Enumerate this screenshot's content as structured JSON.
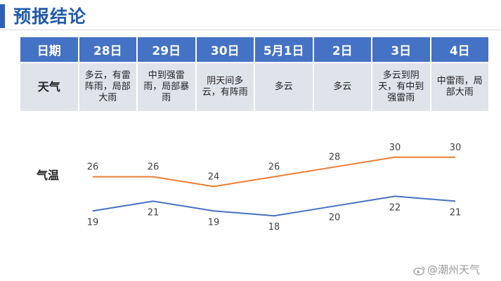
{
  "title": "预报结论",
  "table": {
    "date_header": "日期",
    "weather_header": "天气",
    "dates": [
      "28日",
      "29日",
      "30日",
      "5月1日",
      "2日",
      "3日",
      "4日"
    ],
    "weather": [
      "多云，有雷阵雨，局部大雨",
      "中到强雷雨，局部暴雨",
      "阴天间多云，有阵雨",
      "多云",
      "多云",
      "多云到阴天，有中到强雷雨",
      "中雷雨，局部大雨"
    ]
  },
  "temperature_label": "气温",
  "watermark": "@潮州天气",
  "colors": {
    "header_bg": "#4472c4",
    "cell_bg": "#dfe3ea",
    "title": "#1f5aa8",
    "high_line": "#ed7d31",
    "low_line": "#4472c4"
  },
  "chart_data": {
    "type": "line",
    "categories": [
      "28日",
      "29日",
      "30日",
      "5月1日",
      "2日",
      "3日",
      "4日"
    ],
    "series": [
      {
        "values": [
          26,
          26,
          24,
          26,
          28,
          30,
          30
        ],
        "color": "#ed7d31"
      },
      {
        "values": [
          19,
          21,
          19,
          18,
          20,
          22,
          21
        ],
        "color": "#4472c4"
      }
    ],
    "ylim": [
      14,
      34
    ],
    "grid": false,
    "legend": "none"
  }
}
